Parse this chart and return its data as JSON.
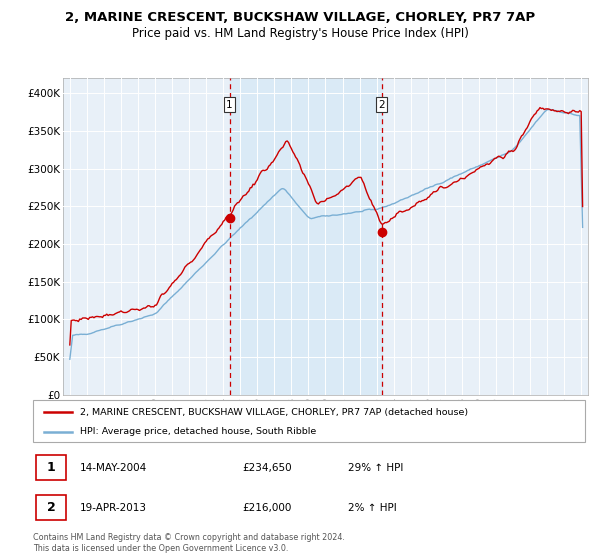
{
  "title_line1": "2, MARINE CRESCENT, BUCKSHAW VILLAGE, CHORLEY, PR7 7AP",
  "title_line2": "Price paid vs. HM Land Registry's House Price Index (HPI)",
  "ylim": [
    0,
    420000
  ],
  "yticks": [
    0,
    50000,
    100000,
    150000,
    200000,
    250000,
    300000,
    350000,
    400000
  ],
  "ytick_labels": [
    "£0",
    "£50K",
    "£100K",
    "£150K",
    "£200K",
    "£250K",
    "£300K",
    "£350K",
    "£400K"
  ],
  "sale1_date": "14-MAY-2004",
  "sale1_price": 234650,
  "sale1_hpi_text": "29% ↑ HPI",
  "sale1_year": 2004.37,
  "sale2_date": "19-APR-2013",
  "sale2_price": 216000,
  "sale2_hpi_text": "2% ↑ HPI",
  "sale2_year": 2013.29,
  "legend_line1": "2, MARINE CRESCENT, BUCKSHAW VILLAGE, CHORLEY, PR7 7AP (detached house)",
  "legend_line2": "HPI: Average price, detached house, South Ribble",
  "footer": "Contains HM Land Registry data © Crown copyright and database right 2024.\nThis data is licensed under the Open Government Licence v3.0.",
  "red_color": "#cc0000",
  "blue_color": "#7aafd4",
  "shade_color": "#daeaf6",
  "chart_bg": "#e8f0f8",
  "grid_color": "#ffffff"
}
